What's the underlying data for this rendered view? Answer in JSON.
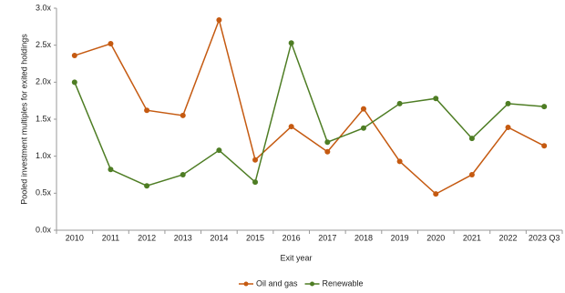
{
  "chart_data": {
    "type": "line",
    "x_label": "Exit year",
    "y_label": "Pooled investment multiples for exited holdings",
    "categories": [
      "2010",
      "2011",
      "2012",
      "2013",
      "2014",
      "2015",
      "2016",
      "2017",
      "2018",
      "2019",
      "2020",
      "2021",
      "2022",
      "2023 Q3"
    ],
    "series": [
      {
        "name": "Oil and gas",
        "color": "#c55a11",
        "values": [
          2.36,
          2.52,
          1.62,
          1.55,
          2.84,
          0.95,
          1.4,
          1.06,
          1.64,
          0.93,
          0.49,
          0.75,
          1.39,
          1.14
        ]
      },
      {
        "name": "Renewable",
        "color": "#4e7d24",
        "values": [
          2.0,
          0.82,
          0.6,
          0.75,
          1.08,
          0.65,
          2.53,
          1.19,
          1.38,
          1.71,
          1.78,
          1.24,
          1.71,
          1.67
        ]
      }
    ],
    "ylim": [
      0,
      3
    ],
    "yticks": [
      {
        "value": 0,
        "label": "0.0x"
      },
      {
        "value": 0.5,
        "label": "0.5x"
      },
      {
        "value": 1,
        "label": "1.0x"
      },
      {
        "value": 1.5,
        "label": "1.5x"
      },
      {
        "value": 2,
        "label": "2.0x"
      },
      {
        "value": 2.5,
        "label": "2.5x"
      },
      {
        "value": 3,
        "label": "3.0x"
      }
    ],
    "grid": false,
    "legend": "bottom"
  }
}
